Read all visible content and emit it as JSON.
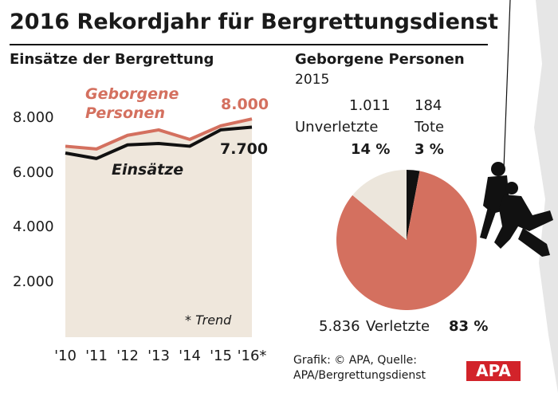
{
  "title": "2016 Rekordjahr für Bergrettungsdienst",
  "source": "Grafik: © APA, Quelle: APA/Bergrettungsdienst",
  "logo": "APA",
  "chart_data": [
    {
      "type": "line",
      "title": "Einsätze der Bergrettung",
      "categories": [
        "'10",
        "'11",
        "'12",
        "'13",
        "'14",
        "'15",
        "'16*"
      ],
      "series": [
        {
          "name": "Geborgene Personen",
          "color": "#d4705f",
          "values": [
            7000,
            6900,
            7400,
            7600,
            7250,
            7750,
            8000
          ],
          "value_labels": [
            null,
            null,
            null,
            null,
            null,
            null,
            "8.000"
          ]
        },
        {
          "name": "Einsätze",
          "color": "#111111",
          "values": [
            6750,
            6550,
            7050,
            7100,
            7000,
            7600,
            7700
          ],
          "value_labels": [
            null,
            null,
            null,
            null,
            null,
            null,
            "7.700"
          ]
        }
      ],
      "area_color": "#efe7dc",
      "annotation": "* Trend",
      "ylim": [
        0,
        9000
      ],
      "yticks": [
        {
          "value": 2000,
          "label": "2.000"
        },
        {
          "value": 4000,
          "label": "4.000"
        },
        {
          "value": 6000,
          "label": "6.000"
        },
        {
          "value": 8000,
          "label": "8.000"
        }
      ],
      "grid": false
    },
    {
      "type": "pie",
      "title": "Geborgene Personen",
      "subtitle": "2015",
      "categories": [
        "Tote",
        "Verletzte",
        "Unverletzte"
      ],
      "values": [
        3,
        83,
        14
      ],
      "value_labels": [
        "3 %",
        "83 %",
        "14 %"
      ],
      "counts": [
        {
          "value": 184,
          "label": "184"
        },
        {
          "value": 5836,
          "label": "5.836"
        },
        {
          "value": 1011,
          "label": "1.011"
        }
      ],
      "colors": [
        "#111111",
        "#d4705f",
        "#ece6dc"
      ]
    }
  ]
}
